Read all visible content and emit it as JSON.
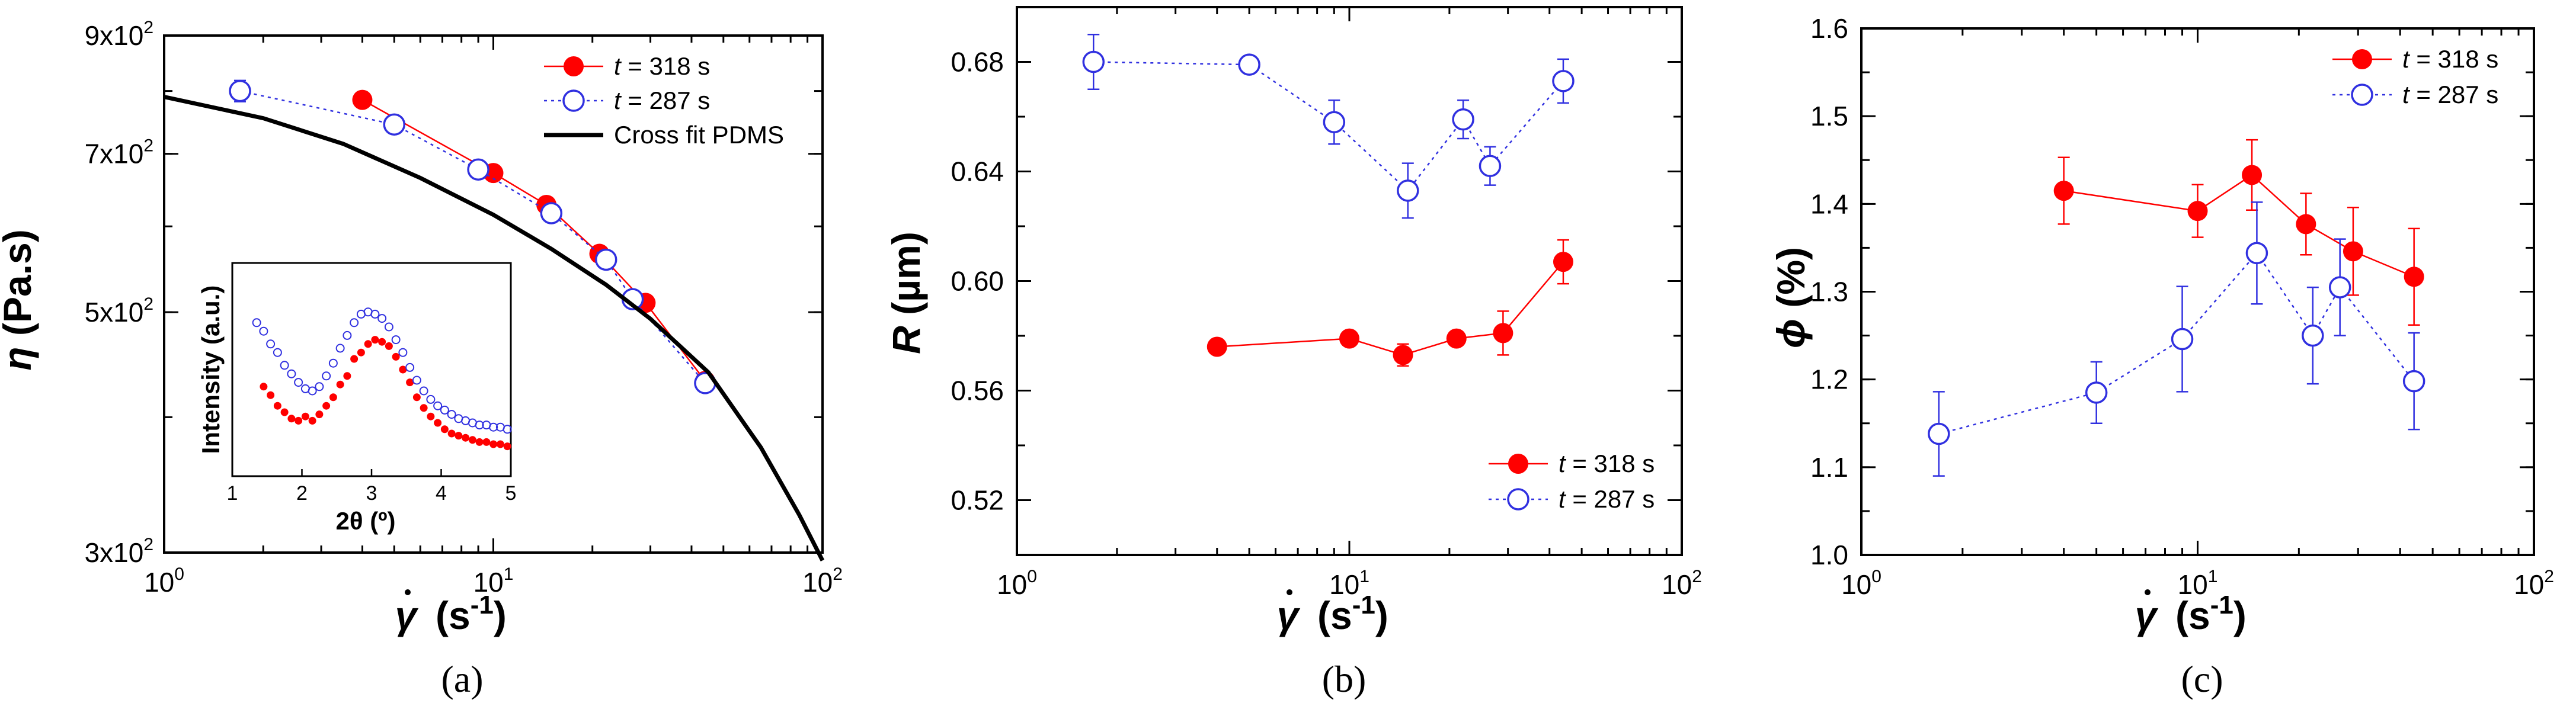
{
  "colors": {
    "red": "#ff0000",
    "blue": "#3030e0",
    "black": "#000000"
  },
  "chart_data": [
    {
      "type": "line",
      "panel_label": "(a)",
      "xlabel": "γ̇ (s⁻¹)",
      "ylabel": "η (Pa.s)",
      "xscale": "log",
      "yscale": "log",
      "xlim": [
        1,
        100
      ],
      "ylim": [
        300,
        900
      ],
      "x_ticks": [
        {
          "base": "10",
          "exp": "0",
          "value": 1
        },
        {
          "base": "10",
          "exp": "1",
          "value": 10
        },
        {
          "base": "10",
          "exp": "2",
          "value": 100
        }
      ],
      "y_ticks": [
        {
          "base": "3x10",
          "exp": "2",
          "value": 300
        },
        {
          "base": "5x10",
          "exp": "2",
          "value": 500
        },
        {
          "base": "7x10",
          "exp": "2",
          "value": 700
        },
        {
          "base": "9x10",
          "exp": "2",
          "value": 900
        }
      ],
      "legend_position": "top-right",
      "series": [
        {
          "name": "t = 318 s",
          "name_italic": "t",
          "name_rest": " = 318 s",
          "style": "red-filled-solid",
          "x": [
            4.0,
            10.0,
            14.5,
            21.0,
            29.0,
            44.0
          ],
          "y": [
            785,
            672,
            628,
            566,
            510,
            432
          ],
          "err": [
            0,
            0,
            0,
            0,
            0,
            0
          ]
        },
        {
          "name": "t = 287 s",
          "name_italic": "t",
          "name_rest": " = 287 s",
          "style": "blue-open-dotted",
          "x": [
            1.7,
            5.0,
            9.0,
            15.0,
            22.0,
            26.5,
            44.0
          ],
          "y": [
            800,
            745,
            677,
            617,
            559,
            514,
            430
          ],
          "err": [
            18,
            0,
            0,
            0,
            0,
            0,
            0
          ]
        },
        {
          "name": "Cross fit PDMS",
          "style": "black-line",
          "x": [
            1.0,
            2.0,
            3.5,
            6.0,
            10.0,
            15.0,
            22.0,
            30.0,
            45.0,
            65.0,
            85.0,
            100.0
          ],
          "y": [
            790,
            755,
            715,
            665,
            615,
            572,
            530,
            493,
            440,
            375,
            325,
            295
          ]
        }
      ],
      "inset": {
        "xlabel": "2θ (º)",
        "ylabel": "Intensity (a.u.)",
        "xlim": [
          1,
          5
        ],
        "x_ticks": [
          "1",
          "2",
          "3",
          "4",
          "5"
        ],
        "series": [
          {
            "name": "red-filled",
            "x": [
              1.45,
              1.55,
              1.65,
              1.75,
              1.85,
              1.95,
              2.05,
              2.15,
              2.25,
              2.35,
              2.45,
              2.55,
              2.65,
              2.75,
              2.85,
              2.95,
              3.05,
              3.15,
              3.25,
              3.35,
              3.45,
              3.55,
              3.65,
              3.75,
              3.85,
              3.95,
              4.05,
              4.15,
              4.25,
              4.35,
              4.45,
              4.55,
              4.65,
              4.75,
              4.85,
              4.95
            ],
            "y": [
              0.42,
              0.38,
              0.33,
              0.3,
              0.27,
              0.26,
              0.28,
              0.26,
              0.29,
              0.33,
              0.37,
              0.43,
              0.47,
              0.55,
              0.58,
              0.62,
              0.64,
              0.63,
              0.61,
              0.56,
              0.5,
              0.44,
              0.37,
              0.32,
              0.28,
              0.25,
              0.22,
              0.2,
              0.19,
              0.18,
              0.17,
              0.16,
              0.16,
              0.15,
              0.15,
              0.14
            ]
          },
          {
            "name": "blue-open",
            "x": [
              1.35,
              1.45,
              1.55,
              1.65,
              1.75,
              1.85,
              1.95,
              2.05,
              2.15,
              2.25,
              2.35,
              2.45,
              2.55,
              2.65,
              2.75,
              2.85,
              2.95,
              3.05,
              3.15,
              3.25,
              3.35,
              3.45,
              3.55,
              3.65,
              3.75,
              3.85,
              3.95,
              4.05,
              4.15,
              4.25,
              4.35,
              4.45,
              4.55,
              4.65,
              4.75,
              4.85,
              4.95
            ],
            "y": [
              0.72,
              0.68,
              0.62,
              0.58,
              0.52,
              0.48,
              0.44,
              0.41,
              0.4,
              0.42,
              0.47,
              0.53,
              0.6,
              0.66,
              0.72,
              0.76,
              0.77,
              0.76,
              0.74,
              0.7,
              0.64,
              0.58,
              0.51,
              0.45,
              0.4,
              0.36,
              0.33,
              0.31,
              0.29,
              0.27,
              0.26,
              0.25,
              0.24,
              0.24,
              0.23,
              0.23,
              0.22
            ]
          }
        ]
      }
    },
    {
      "type": "line",
      "panel_label": "(b)",
      "xlabel": "γ̇ (s⁻¹)",
      "ylabel": "R (µm)",
      "xscale": "log",
      "yscale": "linear",
      "xlim": [
        1,
        100
      ],
      "ylim": [
        0.5,
        0.7
      ],
      "x_ticks": [
        {
          "base": "10",
          "exp": "0",
          "value": 1
        },
        {
          "base": "10",
          "exp": "1",
          "value": 10
        },
        {
          "base": "10",
          "exp": "2",
          "value": 100
        }
      ],
      "y_ticks": [
        "0.52",
        "0.56",
        "0.60",
        "0.64",
        "0.68"
      ],
      "legend_position": "bottom-right",
      "series": [
        {
          "name": "t = 318 s",
          "name_italic": "t",
          "name_rest": " = 318 s",
          "style": "red-filled-solid",
          "x": [
            4.0,
            10.0,
            14.5,
            21.0,
            29.0,
            44.0
          ],
          "y": [
            0.576,
            0.579,
            0.573,
            0.579,
            0.581,
            0.607
          ],
          "err": [
            0,
            0,
            0.004,
            0,
            0.008,
            0.008
          ]
        },
        {
          "name": "t = 287 s",
          "name_italic": "t",
          "name_rest": " = 287 s",
          "style": "blue-open-dotted",
          "x": [
            1.7,
            5.0,
            9.0,
            15.0,
            22.0,
            26.5,
            44.0
          ],
          "y": [
            0.68,
            0.679,
            0.658,
            0.633,
            0.659,
            0.642,
            0.673
          ],
          "err": [
            0.01,
            0.002,
            0.008,
            0.01,
            0.007,
            0.007,
            0.008
          ]
        }
      ]
    },
    {
      "type": "line",
      "panel_label": "(c)",
      "xlabel": "γ̇ (s⁻¹)",
      "ylabel": "ϕ (%)",
      "xscale": "log",
      "yscale": "linear",
      "xlim": [
        1,
        100
      ],
      "ylim": [
        1.0,
        1.6
      ],
      "x_ticks": [
        {
          "base": "10",
          "exp": "0",
          "value": 1
        },
        {
          "base": "10",
          "exp": "1",
          "value": 10
        },
        {
          "base": "10",
          "exp": "2",
          "value": 100
        }
      ],
      "y_ticks": [
        "1.0",
        "1.1",
        "1.2",
        "1.3",
        "1.4",
        "1.5",
        "1.6"
      ],
      "legend_position": "top-right",
      "series": [
        {
          "name": "t = 318 s",
          "name_italic": "t",
          "name_rest": " = 318 s",
          "style": "red-filled-solid",
          "x": [
            4.0,
            10.0,
            14.5,
            21.0,
            29.0,
            44.0
          ],
          "y": [
            1.415,
            1.392,
            1.433,
            1.377,
            1.346,
            1.317
          ],
          "err": [
            0.038,
            0.03,
            0.04,
            0.035,
            0.05,
            0.055
          ]
        },
        {
          "name": "t = 287 s",
          "name_italic": "t",
          "name_rest": " = 287 s",
          "style": "blue-open-dotted",
          "x": [
            1.7,
            5.0,
            9.0,
            15.0,
            22.0,
            26.5,
            44.0
          ],
          "y": [
            1.138,
            1.185,
            1.246,
            1.344,
            1.25,
            1.305,
            1.198
          ],
          "err": [
            0.048,
            0.035,
            0.06,
            0.058,
            0.055,
            0.055,
            0.055
          ]
        }
      ]
    }
  ]
}
